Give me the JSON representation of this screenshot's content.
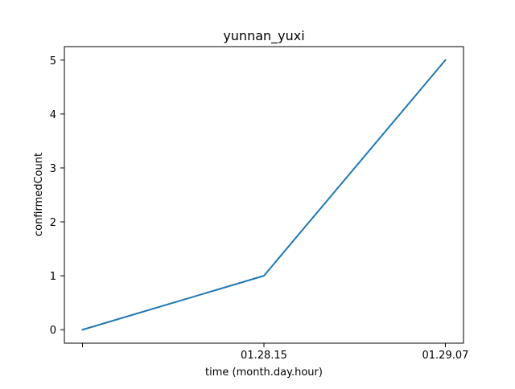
{
  "chart_data": {
    "type": "line",
    "title": "yunnan_yuxi",
    "xlabel": "time (month.day.hour)",
    "ylabel": "confirmedCount",
    "x": [
      "",
      "01.28.15",
      "01.29.07"
    ],
    "series": [
      {
        "values": [
          0,
          1,
          5
        ],
        "color": "#1f77b4"
      }
    ],
    "yticks": [
      "0",
      "1",
      "2",
      "3",
      "4",
      "5"
    ],
    "ylim": [
      -0.25,
      5.25
    ],
    "grid": false,
    "legend": "none"
  }
}
